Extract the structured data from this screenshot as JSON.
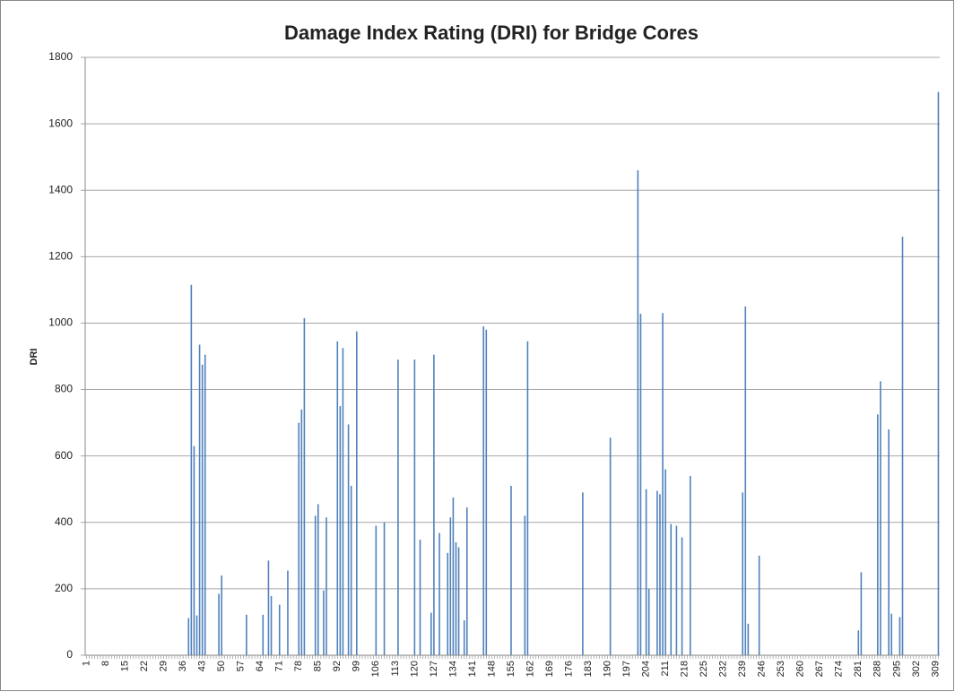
{
  "chart_data": {
    "type": "bar",
    "title": "Damage Index Rating (DRI) for Bridge Cores",
    "y_label": "DRI",
    "categories": [
      "1",
      null,
      null,
      null,
      null,
      null,
      null,
      "8",
      null,
      null,
      null,
      null,
      null,
      null,
      "15",
      null,
      null,
      null,
      null,
      null,
      null,
      "22",
      null,
      null,
      null,
      null,
      null,
      null,
      "29",
      null,
      null,
      null,
      null,
      null,
      null,
      "36",
      null,
      null,
      null,
      null,
      null,
      null,
      "43",
      null,
      null,
      null,
      null,
      null,
      null,
      "50",
      null,
      null,
      null,
      null,
      null,
      null,
      "57",
      null,
      null,
      null,
      null,
      null,
      null,
      "64",
      null,
      null,
      null,
      null,
      null,
      null,
      "71",
      null,
      null,
      null,
      null,
      null,
      null,
      "78",
      null,
      null,
      null,
      null,
      null,
      null,
      "85",
      null,
      null,
      null,
      null,
      null,
      null,
      "92",
      null,
      null,
      null,
      null,
      null,
      null,
      "99",
      null,
      null,
      null,
      null,
      null,
      null,
      "106",
      null,
      null,
      null,
      null,
      null,
      null,
      "113",
      null,
      null,
      null,
      null,
      null,
      null,
      "120",
      null,
      null,
      null,
      null,
      null,
      null,
      "127",
      null,
      null,
      null,
      null,
      null,
      null,
      "134",
      null,
      null,
      null,
      null,
      null,
      null,
      "141",
      null,
      null,
      null,
      null,
      null,
      null,
      "148",
      null,
      null,
      null,
      null,
      null,
      null,
      "155",
      null,
      null,
      null,
      null,
      null,
      null,
      "162",
      null,
      null,
      null,
      null,
      null,
      null,
      "169",
      null,
      null,
      null,
      null,
      null,
      null,
      "176",
      null,
      null,
      null,
      null,
      null,
      null,
      "183",
      null,
      null,
      null,
      null,
      null,
      null,
      "190",
      null,
      null,
      null,
      null,
      null,
      null,
      "197",
      null,
      null,
      null,
      null,
      null,
      null,
      "204",
      null,
      null,
      null,
      null,
      null,
      null,
      "211",
      null,
      null,
      null,
      null,
      null,
      null,
      "218",
      null,
      null,
      null,
      null,
      null,
      null,
      "225",
      null,
      null,
      null,
      null,
      null,
      null,
      "232",
      null,
      null,
      null,
      null,
      null,
      null,
      "239",
      null,
      null,
      null,
      null,
      null,
      null,
      "246",
      null,
      null,
      null,
      null,
      null,
      null,
      "253",
      null,
      null,
      null,
      null,
      null,
      null,
      "260",
      null,
      null,
      null,
      null,
      null,
      null,
      "267",
      null,
      null,
      null,
      null,
      null,
      null,
      "274",
      null,
      null,
      null,
      null,
      null,
      null,
      "281",
      null,
      null,
      null,
      null,
      null,
      null,
      "288",
      null,
      null,
      null,
      null,
      null,
      null,
      "295",
      null,
      null,
      null,
      null,
      null,
      null,
      "302",
      null,
      null,
      null,
      null,
      null,
      null,
      "309",
      null
    ],
    "values": [
      0,
      0,
      0,
      0,
      0,
      0,
      0,
      0,
      0,
      0,
      0,
      0,
      0,
      0,
      0,
      0,
      0,
      0,
      0,
      0,
      0,
      0,
      0,
      0,
      0,
      0,
      0,
      0,
      0,
      0,
      0,
      0,
      0,
      0,
      0,
      0,
      0,
      112,
      1115,
      630,
      120,
      935,
      875,
      905,
      0,
      0,
      0,
      0,
      185,
      240,
      0,
      0,
      0,
      0,
      0,
      0,
      0,
      0,
      122,
      0,
      0,
      0,
      0,
      0,
      122,
      0,
      285,
      178,
      0,
      0,
      152,
      0,
      0,
      255,
      0,
      0,
      0,
      700,
      740,
      1015,
      0,
      0,
      0,
      420,
      455,
      0,
      195,
      415,
      0,
      0,
      0,
      945,
      750,
      925,
      0,
      695,
      510,
      0,
      975,
      0,
      0,
      0,
      0,
      0,
      0,
      390,
      0,
      0,
      400,
      0,
      0,
      0,
      0,
      890,
      0,
      0,
      0,
      0,
      0,
      890,
      0,
      348,
      0,
      0,
      0,
      128,
      905,
      0,
      368,
      0,
      0,
      308,
      415,
      475,
      340,
      325,
      0,
      105,
      445,
      0,
      0,
      0,
      0,
      0,
      990,
      980,
      0,
      0,
      0,
      0,
      0,
      0,
      0,
      0,
      510,
      0,
      0,
      0,
      0,
      420,
      945,
      0,
      0,
      0,
      0,
      0,
      0,
      0,
      0,
      0,
      0,
      0,
      0,
      0,
      0,
      0,
      0,
      0,
      0,
      0,
      490,
      0,
      0,
      0,
      0,
      0,
      0,
      0,
      0,
      0,
      655,
      0,
      0,
      0,
      0,
      0,
      0,
      0,
      0,
      0,
      1460,
      1028,
      0,
      500,
      200,
      0,
      0,
      495,
      485,
      1030,
      560,
      0,
      395,
      0,
      390,
      0,
      355,
      0,
      0,
      540,
      0,
      0,
      0,
      0,
      0,
      0,
      0,
      0,
      0,
      0,
      0,
      0,
      0,
      0,
      0,
      0,
      0,
      0,
      490,
      1050,
      95,
      0,
      0,
      0,
      300,
      0,
      0,
      0,
      0,
      0,
      0,
      0,
      0,
      0,
      0,
      0,
      0,
      0,
      0,
      0,
      0,
      0,
      0,
      0,
      0,
      0,
      0,
      0,
      0,
      0,
      0,
      0,
      0,
      0,
      0,
      0,
      0,
      0,
      0,
      0,
      75,
      250,
      0,
      0,
      0,
      0,
      0,
      725,
      825,
      0,
      0,
      680,
      125,
      0,
      0,
      115,
      1260,
      0,
      0,
      0,
      0,
      0,
      0,
      0,
      0,
      0,
      0,
      0,
      0,
      1696
    ],
    "color": "#4f81bd",
    "ylim": [
      0,
      1800
    ],
    "yticks": [
      0,
      200,
      400,
      600,
      800,
      1000,
      1200,
      1400,
      1600,
      1800
    ],
    "grid": true
  }
}
